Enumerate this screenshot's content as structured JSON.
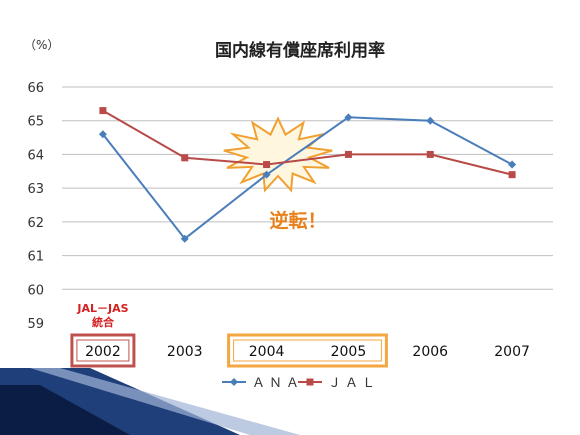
{
  "chart_data": {
    "type": "line",
    "title": "国内線有償座席利用率",
    "unit": "（%）",
    "categories": [
      "2002",
      "2003",
      "2004",
      "2005",
      "2006",
      "2007"
    ],
    "ylim": [
      59,
      66
    ],
    "yticks": [
      59,
      60,
      61,
      62,
      63,
      64,
      65,
      66
    ],
    "grid": true,
    "legend_position": "bottom",
    "series": [
      {
        "name": "ＡＮＡ",
        "color": "#4a7ebb",
        "marker": "diamond",
        "values": [
          64.6,
          61.5,
          63.4,
          65.1,
          65.0,
          63.7
        ]
      },
      {
        "name": "ＪＡＬ",
        "color": "#b84a48",
        "marker": "square",
        "values": [
          65.3,
          63.9,
          63.7,
          64.0,
          64.0,
          63.4
        ]
      }
    ],
    "annotations": {
      "merger_label_line1": "JAL－JAS",
      "merger_label_line2": "統合",
      "reversal_label": "逆転！"
    },
    "highlight_colors": {
      "merger_box": "#c0504d",
      "period_box": "#f4a640",
      "burst_fill": "#fff6e0",
      "burst_stroke": "#f0a030"
    }
  }
}
